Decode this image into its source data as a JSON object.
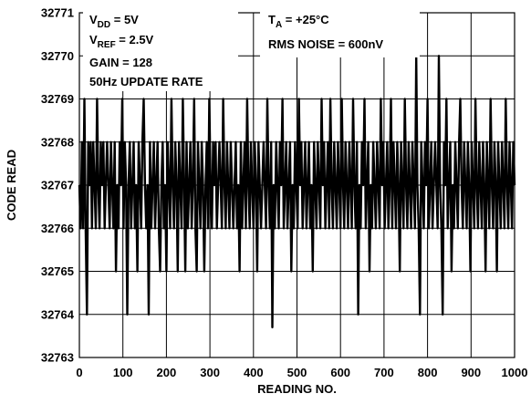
{
  "chart_data": {
    "type": "line",
    "xlabel": "READING NO.",
    "ylabel": "CODE READ",
    "xlim": [
      0,
      1000
    ],
    "ylim": [
      32763,
      32771
    ],
    "x_ticks": [
      "0",
      "100",
      "200",
      "300",
      "400",
      "500",
      "600",
      "700",
      "800",
      "900",
      "1000"
    ],
    "y_ticks": [
      "32763",
      "32764",
      "32765",
      "32766",
      "32767",
      "32768",
      "32769",
      "32770",
      "32771"
    ],
    "grid": true,
    "annotations": {
      "vdd": {
        "main": "V",
        "sub": "DD",
        "rest": " = 5V"
      },
      "vref": {
        "main": "V",
        "sub": "REF",
        "rest": " = 2.5V"
      },
      "gain": "GAIN = 128",
      "rate": "50Hz UPDATE RATE",
      "ta": {
        "main": "T",
        "sub": "A",
        "rest": " = +25°C"
      },
      "rms": "RMS NOISE = 600nV"
    },
    "series": [
      {
        "values": [
          32767,
          32766,
          32768,
          32766,
          32769,
          32766,
          32764,
          32768,
          32767,
          32768,
          32766,
          32768,
          32767,
          32766,
          32769,
          32767,
          32766,
          32768,
          32767,
          32768,
          32766,
          32767,
          32768,
          32767,
          32766,
          32768,
          32767,
          32766,
          32768,
          32765,
          32767,
          32766,
          32768,
          32767,
          32769,
          32766,
          32768,
          32767,
          32764,
          32767,
          32768,
          32766,
          32767,
          32768,
          32766,
          32767,
          32765,
          32768,
          32767,
          32766,
          32768,
          32769,
          32767,
          32766,
          32767,
          32764,
          32768,
          32766,
          32767,
          32768,
          32766,
          32767,
          32768,
          32766,
          32765,
          32767,
          32768,
          32766,
          32767,
          32765,
          32768,
          32767,
          32766,
          32769,
          32767,
          32766,
          32768,
          32767,
          32765,
          32768,
          32767,
          32766,
          32769,
          32767,
          32765,
          32768,
          32766,
          32767,
          32768,
          32766,
          32767,
          32769,
          32766,
          32765,
          32768,
          32767,
          32766,
          32768,
          32767,
          32765,
          32767,
          32768,
          32766,
          32769,
          32767,
          32766,
          32768,
          32767,
          32768,
          32766,
          32767,
          32768,
          32767,
          32766,
          32769,
          32767,
          32766,
          32768,
          32767,
          32766,
          32768,
          32767,
          32766,
          32767,
          32768,
          32766,
          32767,
          32765,
          32768,
          32766,
          32767,
          32768,
          32766,
          32769,
          32767,
          32766,
          32768,
          32767,
          32766,
          32768,
          32767,
          32765,
          32768,
          32767,
          32766,
          32767,
          32768,
          32767,
          32766,
          32769,
          32767,
          32766,
          32768,
          32763.7,
          32767,
          32766,
          32768,
          32767,
          32766,
          32768,
          32767,
          32769,
          32766,
          32767,
          32768,
          32766,
          32767,
          32768,
          32765,
          32767,
          32766,
          32768,
          32767,
          32766,
          32769,
          32767,
          32768,
          32766,
          32767,
          32768,
          32766,
          32767,
          32768,
          32766,
          32767,
          32765,
          32768,
          32767,
          32766,
          32768,
          32767,
          32766,
          32769,
          32767,
          32768,
          32766,
          32767,
          32768,
          32766,
          32769,
          32767,
          32766,
          32768,
          32767,
          32766,
          32768,
          32767,
          32766,
          32769,
          32767,
          32766,
          32768,
          32767,
          32766,
          32768,
          32767,
          32766,
          32769,
          32767,
          32766,
          32768,
          32764,
          32767,
          32766,
          32768,
          32767,
          32769,
          32766,
          32767,
          32768,
          32765,
          32767,
          32766,
          32768,
          32767,
          32766,
          32768,
          32767,
          32766,
          32769,
          32767,
          32768,
          32766,
          32767,
          32768,
          32766,
          32767,
          32769,
          32766,
          32768,
          32767,
          32766,
          32768,
          32767,
          32765,
          32768,
          32767,
          32766,
          32769,
          32767,
          32766,
          32768,
          32767,
          32766,
          32768,
          32767,
          32766,
          32770,
          32767,
          32766,
          32764,
          32768,
          32767,
          32766,
          32768,
          32767,
          32769,
          32766,
          32767,
          32768,
          32766,
          32767,
          32768,
          32767,
          32766,
          32770,
          32767,
          32766,
          32764,
          32768,
          32767,
          32769,
          32766,
          32767,
          32768,
          32765,
          32767,
          32766,
          32768,
          32767,
          32766,
          32768,
          32769,
          32767,
          32766,
          32768,
          32767,
          32766,
          32768,
          32767,
          32765,
          32768,
          32767,
          32766,
          32769,
          32767,
          32766,
          32768,
          32767,
          32766,
          32768,
          32767,
          32765,
          32768,
          32767,
          32766,
          32769,
          32767,
          32766,
          32768,
          32767,
          32765,
          32768,
          32767,
          32766,
          32768,
          32767,
          32766,
          32769,
          32767,
          32766,
          32768,
          32767,
          32766,
          32768,
          32767
        ]
      }
    ]
  }
}
